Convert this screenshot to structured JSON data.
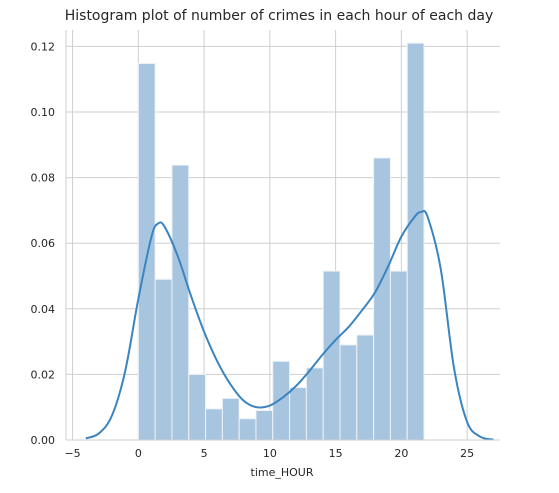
{
  "chart_data": {
    "type": "bar",
    "title": "Histogram plot of number of crimes in each hour of each day",
    "xlabel": "time_HOUR",
    "ylabel": "",
    "xlim": [
      -5.5,
      27.5
    ],
    "ylim": [
      0,
      0.125
    ],
    "xticks": [
      -5,
      0,
      5,
      10,
      15,
      20,
      25
    ],
    "xtick_labels": [
      "−5",
      "0",
      "5",
      "10",
      "15",
      "20",
      "25"
    ],
    "yticks": [
      0,
      0.02,
      0.04,
      0.06,
      0.08,
      0.1,
      0.12
    ],
    "ytick_labels": [
      "0.00",
      "0.02",
      "0.04",
      "0.06",
      "0.08",
      "0.10",
      "0.12"
    ],
    "grid": true,
    "bins": [
      {
        "start": 0.0,
        "end": 1.278,
        "value": 0.1148
      },
      {
        "start": 1.278,
        "end": 2.556,
        "value": 0.049
      },
      {
        "start": 2.556,
        "end": 3.833,
        "value": 0.0838
      },
      {
        "start": 3.833,
        "end": 5.111,
        "value": 0.02
      },
      {
        "start": 5.111,
        "end": 6.389,
        "value": 0.0095
      },
      {
        "start": 6.389,
        "end": 7.667,
        "value": 0.0127
      },
      {
        "start": 7.667,
        "end": 8.944,
        "value": 0.0065
      },
      {
        "start": 8.944,
        "end": 10.222,
        "value": 0.009
      },
      {
        "start": 10.222,
        "end": 11.5,
        "value": 0.024
      },
      {
        "start": 11.5,
        "end": 12.778,
        "value": 0.016
      },
      {
        "start": 12.778,
        "end": 14.056,
        "value": 0.022
      },
      {
        "start": 14.056,
        "end": 15.333,
        "value": 0.0515
      },
      {
        "start": 15.333,
        "end": 16.611,
        "value": 0.029
      },
      {
        "start": 16.611,
        "end": 17.889,
        "value": 0.032
      },
      {
        "start": 17.889,
        "end": 19.167,
        "value": 0.086
      },
      {
        "start": 19.167,
        "end": 20.444,
        "value": 0.0515
      },
      {
        "start": 20.444,
        "end": 21.722,
        "value": 0.121
      },
      {
        "start": 21.722,
        "end": 23.0,
        "value": 0.0
      }
    ],
    "kde": {
      "x": [
        -4,
        -3,
        -2,
        -1,
        0,
        1,
        1.5,
        2,
        3,
        4,
        5,
        6,
        7,
        8,
        9,
        10,
        11,
        12,
        13,
        14,
        15,
        16,
        17,
        18,
        19,
        20,
        21,
        21.5,
        22,
        23,
        24,
        25,
        26,
        27
      ],
      "y": [
        0.0005,
        0.002,
        0.0075,
        0.021,
        0.043,
        0.062,
        0.066,
        0.065,
        0.056,
        0.044,
        0.033,
        0.024,
        0.017,
        0.012,
        0.01,
        0.0105,
        0.013,
        0.0165,
        0.021,
        0.026,
        0.0305,
        0.0345,
        0.0395,
        0.045,
        0.053,
        0.062,
        0.068,
        0.0695,
        0.068,
        0.052,
        0.022,
        0.0055,
        0.001,
        0.0001
      ]
    },
    "colors": {
      "bar_fill": "#a8c5df",
      "bar_stroke": "#eef3f8",
      "kde_line": "#3b84bf",
      "text": "#262626",
      "grid": "#cfcfcf"
    }
  }
}
